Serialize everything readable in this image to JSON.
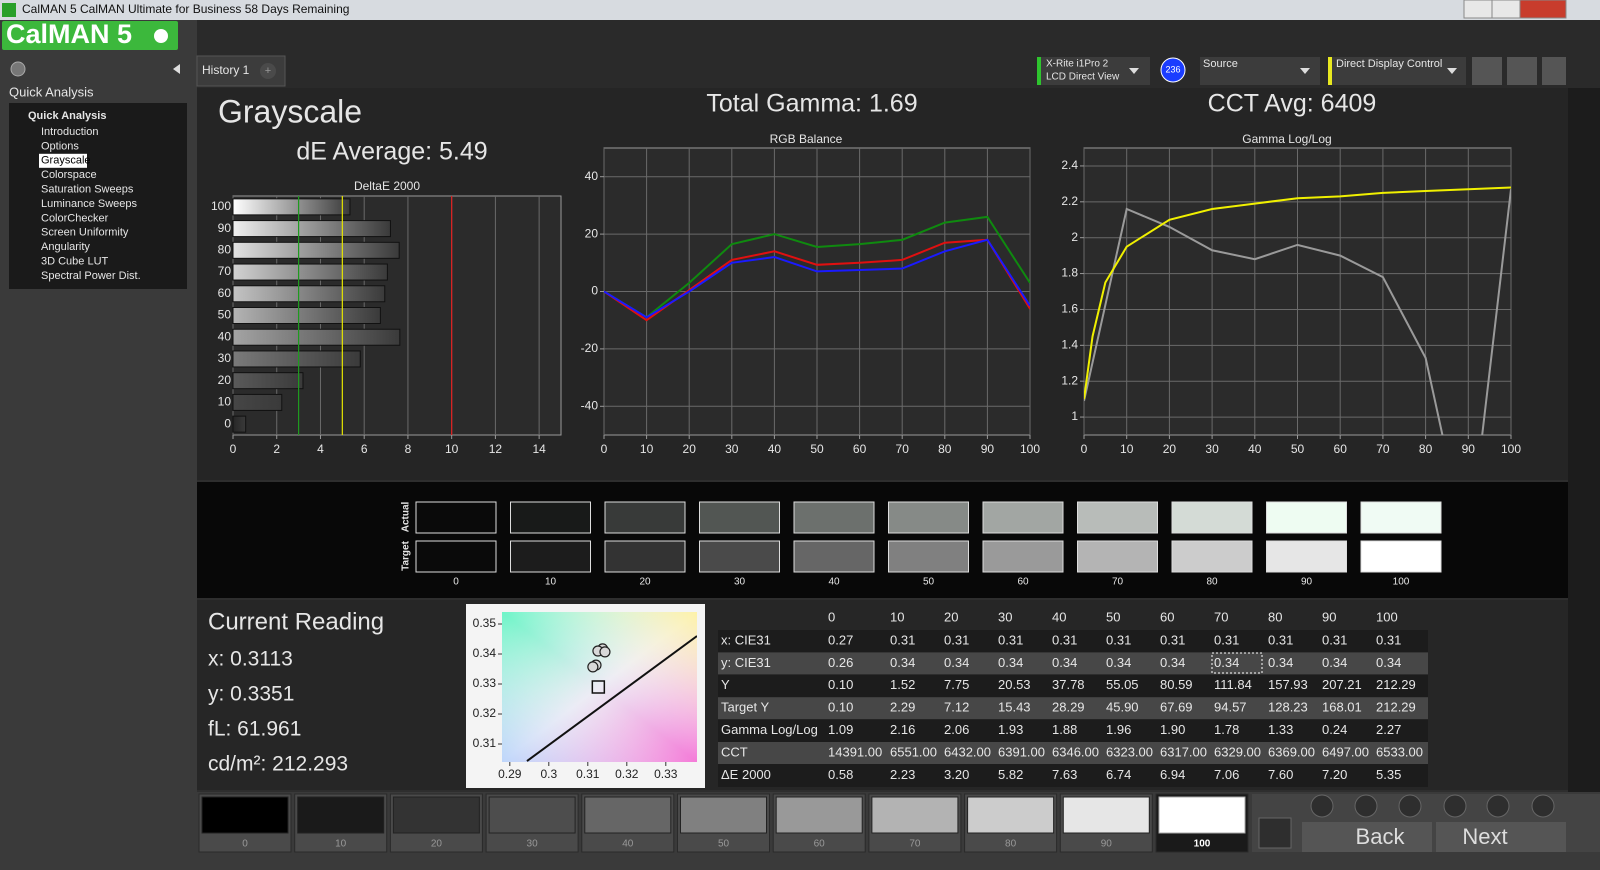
{
  "window": {
    "title": "CalMAN 5 CalMAN Ultimate for Business 58 Days Remaining"
  },
  "logo": "CalMAN 5",
  "sidebar": {
    "header": "Quick Analysis",
    "root": "Quick Analysis",
    "items": [
      "Introduction",
      "Options",
      "Grayscale",
      "Colorspace",
      "Saturation Sweeps",
      "Luminance Sweeps",
      "ColorChecker",
      "Screen Uniformity",
      "Angularity",
      "3D Cube LUT",
      "Spectral Power Dist."
    ],
    "selected": 2
  },
  "tabs": {
    "active": "History 1",
    "add": "+"
  },
  "toolbar": {
    "meter_name": "X-Rite i1Pro 2",
    "meter_mode": "LCD Direct View",
    "meter_badge": "236",
    "source": "Source",
    "display": "Direct Display Control"
  },
  "summary": {
    "title": "Grayscale",
    "de_average": "dE Average: 5.49",
    "total_gamma": "Total Gamma: 1.69",
    "cct_avg": "CCT Avg: 6409"
  },
  "chart_data": [
    {
      "type": "hbar",
      "title": "DeltaE 2000",
      "categories": [
        "100",
        "90",
        "80",
        "70",
        "60",
        "50",
        "40",
        "30",
        "20",
        "10",
        "0"
      ],
      "values": [
        5.35,
        7.2,
        7.6,
        7.06,
        6.94,
        6.74,
        7.63,
        5.82,
        3.2,
        2.23,
        0.58
      ],
      "colors": [
        "#ffffff",
        "#f0f0f0",
        "#e2e2e2",
        "#d2d2d2",
        "#c4c4c4",
        "#b4b4b4",
        "#a4a4a4",
        "#7a7a7a",
        "#5a5a5a",
        "#464646",
        "#262626"
      ],
      "xlim": [
        0,
        15
      ],
      "xticks": [
        0,
        2,
        4,
        6,
        8,
        10,
        12,
        14
      ],
      "grid": true,
      "reference_lines": [
        {
          "value": 3,
          "color": "#1f9a1f"
        },
        {
          "value": 5,
          "color": "#e6e600"
        },
        {
          "value": 10,
          "color": "#e02020"
        }
      ]
    },
    {
      "type": "line",
      "title": "RGB Balance",
      "x": [
        0,
        10,
        20,
        30,
        40,
        50,
        60,
        70,
        80,
        90,
        100
      ],
      "series": [
        {
          "color": "#0f8a0f",
          "values": [
            0,
            -9,
            3,
            16.5,
            20,
            15.5,
            16.5,
            18,
            24,
            26,
            3
          ]
        },
        {
          "color": "#e01010",
          "values": [
            0,
            -10,
            0.5,
            11,
            14,
            9.3,
            10,
            11,
            17,
            18,
            -6
          ]
        },
        {
          "color": "#1a1aff",
          "values": [
            0,
            -9,
            0,
            10,
            12,
            7,
            7.5,
            8,
            14,
            18,
            -5
          ]
        }
      ],
      "xlim": [
        0,
        100
      ],
      "xticks": [
        0,
        10,
        20,
        30,
        40,
        50,
        60,
        70,
        80,
        90,
        100
      ],
      "ylim": [
        -50,
        50
      ],
      "yticks": [
        -40,
        -20,
        0,
        20,
        40
      ],
      "grid": true
    },
    {
      "type": "line",
      "title": "Gamma Log/Log",
      "x": [
        0,
        10,
        20,
        30,
        40,
        50,
        60,
        70,
        80,
        90,
        100
      ],
      "series": [
        {
          "color": "#9a9a9a",
          "values": [
            1.09,
            2.16,
            2.06,
            1.93,
            1.88,
            1.96,
            1.9,
            1.78,
            1.33,
            0.24,
            2.27
          ]
        },
        {
          "color": "#f0f000",
          "x": [
            0,
            2,
            5,
            10,
            20,
            30,
            40,
            50,
            60,
            70,
            80,
            90,
            100
          ],
          "values": [
            1.1,
            1.45,
            1.75,
            1.95,
            2.1,
            2.16,
            2.19,
            2.22,
            2.23,
            2.25,
            2.26,
            2.27,
            2.28
          ]
        }
      ],
      "xlim": [
        0,
        100
      ],
      "xticks": [
        0,
        10,
        20,
        30,
        40,
        50,
        60,
        70,
        80,
        90,
        100
      ],
      "ylim": [
        0.9,
        2.5
      ],
      "yticks": [
        1,
        1.2,
        1.4,
        1.6,
        1.8,
        2,
        2.2,
        2.4
      ],
      "grid": true
    },
    {
      "type": "scatter",
      "xlim": [
        0.288,
        0.338
      ],
      "ylim": [
        0.304,
        0.354
      ],
      "xticks": [
        0.29,
        0.3,
        0.31,
        0.32,
        0.33
      ],
      "yticks": [
        0.31,
        0.32,
        0.33,
        0.34,
        0.35
      ],
      "series": [
        {
          "color": "#222222",
          "marker": "circle",
          "x": [
            0.3138,
            0.3126,
            0.3144,
            0.3121,
            0.3113
          ],
          "values": [
            0.3417,
            0.341,
            0.3407,
            0.3363,
            0.3357
          ]
        },
        {
          "color": "#111111",
          "marker": "square",
          "x": [
            0.3127
          ],
          "values": [
            0.329
          ]
        },
        {
          "color": "#111111",
          "marker": "line",
          "x": [
            0.2944,
            0.338
          ],
          "values": [
            0.3043,
            0.346
          ]
        }
      ]
    }
  ],
  "swatches": {
    "actual_label": "Actual",
    "target_label": "Target",
    "levels": [
      0,
      10,
      20,
      30,
      40,
      50,
      60,
      70,
      80,
      90,
      100
    ],
    "actual_colors": [
      "#0a0a0a",
      "#181a19",
      "#383a39",
      "#525653",
      "#6c706d",
      "#868a87",
      "#a2a6a3",
      "#b8bcb9",
      "#d4dbd6",
      "#eefcf2",
      "#f0fbf4"
    ],
    "target_colors": [
      "#0a0a0a",
      "#1c1c1c",
      "#333333",
      "#4a4a4a",
      "#666666",
      "#808080",
      "#9a9a9a",
      "#b4b4b4",
      "#cccccc",
      "#e6e6e6",
      "#ffffff"
    ]
  },
  "current_reading": {
    "title": "Current Reading",
    "x": "x: 0.3113",
    "y": "y: 0.3351",
    "fl": "fL: 61.961",
    "cdm2": "cd/m²: 212.293"
  },
  "table": {
    "columns": [
      0,
      10,
      20,
      30,
      40,
      50,
      60,
      70,
      80,
      90,
      100
    ],
    "rows": [
      {
        "label": "x: CIE31",
        "cells": [
          "0.27",
          "0.31",
          "0.31",
          "0.31",
          "0.31",
          "0.31",
          "0.31",
          "0.31",
          "0.31",
          "0.31",
          "0.31"
        ]
      },
      {
        "label": "y: CIE31",
        "cells": [
          "0.26",
          "0.34",
          "0.34",
          "0.34",
          "0.34",
          "0.34",
          "0.34",
          "0.34",
          "0.34",
          "0.34",
          "0.34"
        ]
      },
      {
        "label": "Y",
        "cells": [
          "0.10",
          "1.52",
          "7.75",
          "20.53",
          "37.78",
          "55.05",
          "80.59",
          "111.84",
          "157.93",
          "207.21",
          "212.29"
        ]
      },
      {
        "label": "Target Y",
        "cells": [
          "0.10",
          "2.29",
          "7.12",
          "15.43",
          "28.29",
          "45.90",
          "67.69",
          "94.57",
          "128.23",
          "168.01",
          "212.29"
        ]
      },
      {
        "label": "Gamma Log/Log",
        "cells": [
          "1.09",
          "2.16",
          "2.06",
          "1.93",
          "1.88",
          "1.96",
          "1.90",
          "1.78",
          "1.33",
          "0.24",
          "2.27"
        ]
      },
      {
        "label": "CCT",
        "cells": [
          "14391.00",
          "6551.00",
          "6432.00",
          "6391.00",
          "6346.00",
          "6323.00",
          "6317.00",
          "6329.00",
          "6369.00",
          "6497.00",
          "6533.00"
        ]
      },
      {
        "label": "ΔE 2000",
        "cells": [
          "0.58",
          "2.23",
          "3.20",
          "5.82",
          "7.63",
          "6.74",
          "6.94",
          "7.06",
          "7.60",
          "7.20",
          "5.35"
        ]
      }
    ]
  },
  "patch_bar": {
    "levels": [
      0,
      10,
      20,
      30,
      40,
      50,
      60,
      70,
      80,
      90,
      100
    ],
    "colors": [
      "#000000",
      "#1a1a1a",
      "#333333",
      "#4d4d4d",
      "#666666",
      "#808080",
      "#999999",
      "#b3b3b3",
      "#cccccc",
      "#e6e6e6",
      "#ffffff"
    ],
    "selected": 10
  },
  "nav": {
    "back": "Back",
    "next": "Next"
  }
}
